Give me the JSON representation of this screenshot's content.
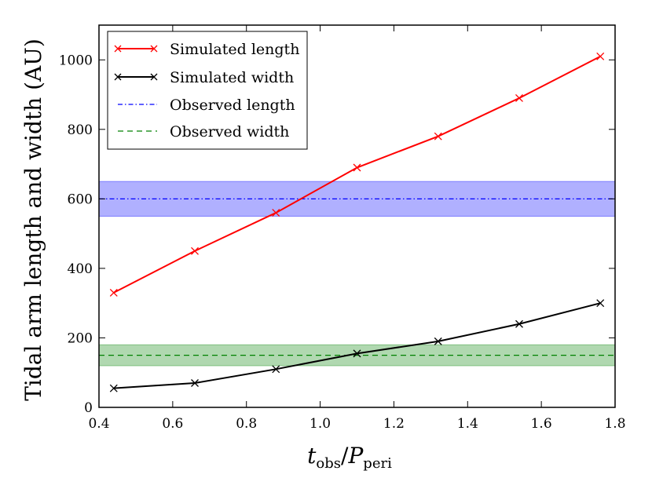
{
  "chart_data": {
    "type": "line",
    "xlabel": "t_obs / P_peri",
    "xlabel_parts": {
      "t": "t",
      "t_sub": "obs",
      "slash": "/",
      "p": "P",
      "p_sub": "peri"
    },
    "ylabel": "Tidal arm length and width (AU)",
    "xlim": [
      0.4,
      1.8
    ],
    "ylim": [
      0,
      1100
    ],
    "xticks": [
      0.4,
      0.6,
      0.8,
      1.0,
      1.2,
      1.4,
      1.6,
      1.8
    ],
    "xtick_labels": [
      "0.4",
      "0.6",
      "0.8",
      "1.0",
      "1.2",
      "1.4",
      "1.6",
      "1.8"
    ],
    "yticks": [
      0,
      200,
      400,
      600,
      800,
      1000
    ],
    "ytick_labels": [
      "0",
      "200",
      "400",
      "600",
      "800",
      "1000"
    ],
    "grid": false,
    "legend_position": "top-left",
    "series": [
      {
        "name": "Simulated length",
        "kind": "line-marker",
        "color": "#ff0000",
        "marker": "x",
        "x": [
          0.44,
          0.66,
          0.88,
          1.1,
          1.32,
          1.54,
          1.76
        ],
        "y": [
          330,
          450,
          560,
          690,
          780,
          890,
          1010
        ]
      },
      {
        "name": "Simulated width",
        "kind": "line-marker",
        "color": "#000000",
        "marker": "x",
        "x": [
          0.44,
          0.66,
          0.88,
          1.1,
          1.32,
          1.54,
          1.76
        ],
        "y": [
          55,
          70,
          110,
          155,
          190,
          240,
          300
        ]
      },
      {
        "name": "Observed length",
        "kind": "hline",
        "style": "dashdot",
        "color": "#0000ff",
        "y": 600,
        "band": [
          550,
          650
        ],
        "band_color": "#8080ff"
      },
      {
        "name": "Observed width",
        "kind": "hline",
        "style": "dashed",
        "color": "#008000",
        "y": 150,
        "band": [
          120,
          180
        ],
        "band_color": "#80c080"
      }
    ]
  }
}
